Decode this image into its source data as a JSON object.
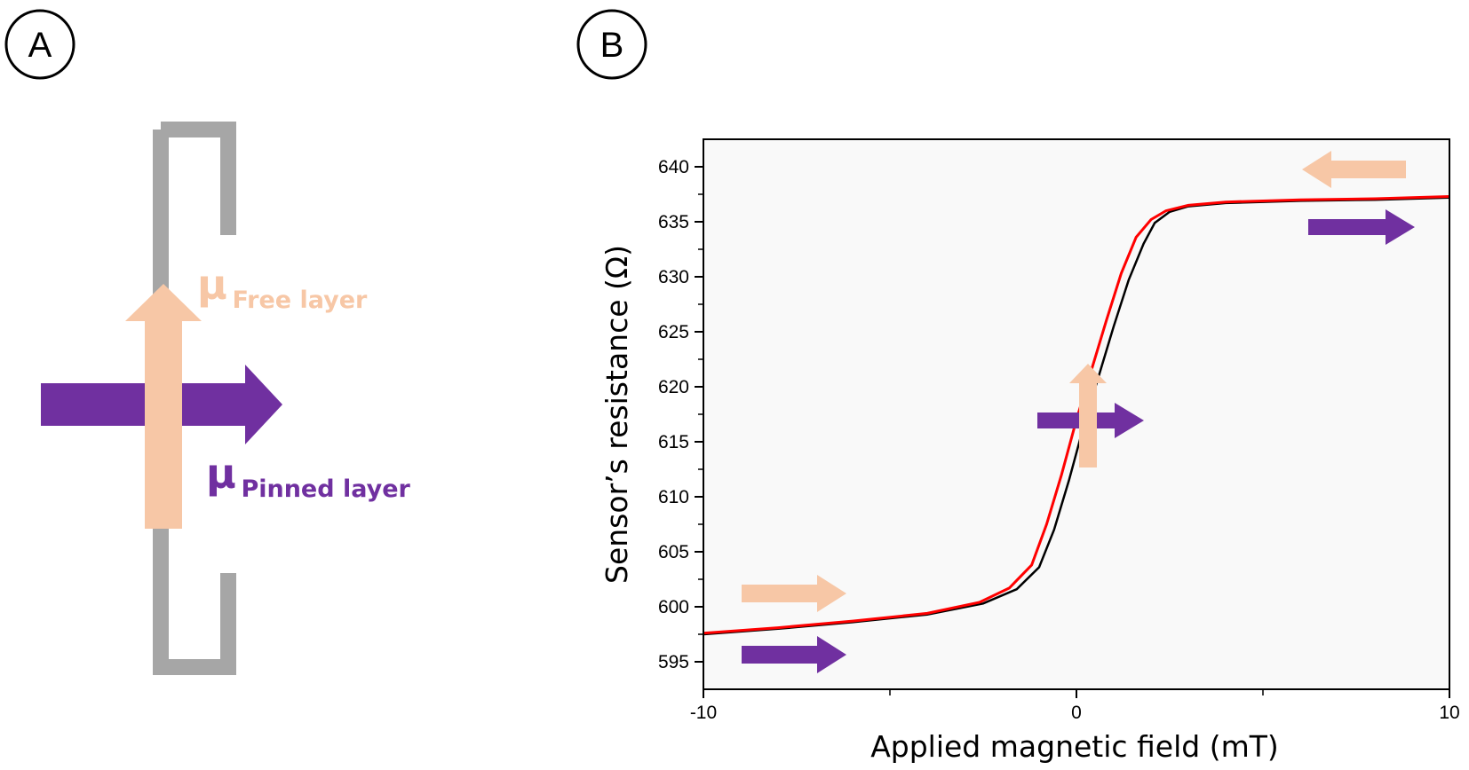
{
  "panels": {
    "a_label": "A",
    "b_label": "B"
  },
  "diagram": {
    "free_mu": "μ",
    "free_sub": "Free layer",
    "pinned_mu": "μ",
    "pinned_sub": "Pinned layer",
    "colors": {
      "free": "#f7c7a6",
      "pinned": "#7030a0",
      "sensor": "#a6a6a6"
    }
  },
  "chart_data": {
    "type": "line",
    "xlabel": "Applied magnetic field (mT)",
    "ylabel": "Sensor’s resistance (Ω)",
    "xlim": [
      -10,
      10
    ],
    "ylim": [
      592.5,
      642.5
    ],
    "x_tick_labels": [
      {
        "value": -10,
        "label": "-10"
      },
      {
        "value": 0,
        "label": "0"
      },
      {
        "value": 10,
        "label": "10"
      }
    ],
    "x_minor_ticks": [
      -5,
      5
    ],
    "y_ticks": [
      595,
      600,
      605,
      610,
      615,
      620,
      625,
      630,
      635,
      640
    ],
    "grid": false,
    "series": [
      {
        "color": "#000000",
        "x": [
          -10,
          -8,
          -6,
          -4,
          -2.5,
          -1.6,
          -1.0,
          -0.6,
          -0.2,
          0.2,
          0.6,
          1.0,
          1.4,
          1.8,
          2.1,
          2.5,
          3,
          4,
          6,
          8,
          10
        ],
        "y": [
          597.5,
          598.0,
          598.6,
          599.3,
          600.3,
          601.6,
          603.6,
          607.0,
          611.5,
          616.5,
          621.0,
          625.5,
          629.7,
          633.0,
          634.9,
          635.9,
          636.4,
          636.7,
          636.9,
          637.0,
          637.2
        ]
      },
      {
        "color": "#ff0000",
        "x": [
          -10,
          -8,
          -6,
          -4,
          -2.6,
          -1.8,
          -1.2,
          -0.8,
          -0.4,
          0,
          0.4,
          0.8,
          1.2,
          1.6,
          2.0,
          2.4,
          3,
          4,
          6,
          8,
          10
        ],
        "y": [
          597.6,
          598.1,
          598.7,
          599.4,
          600.4,
          601.7,
          603.8,
          607.5,
          612.0,
          617.0,
          621.5,
          626.0,
          630.3,
          633.6,
          635.2,
          636.0,
          636.5,
          636.8,
          637.0,
          637.1,
          637.3
        ]
      }
    ],
    "annotation_arrows": {
      "free_color": "#f7c7a6",
      "pinned_color": "#7030a0"
    }
  }
}
